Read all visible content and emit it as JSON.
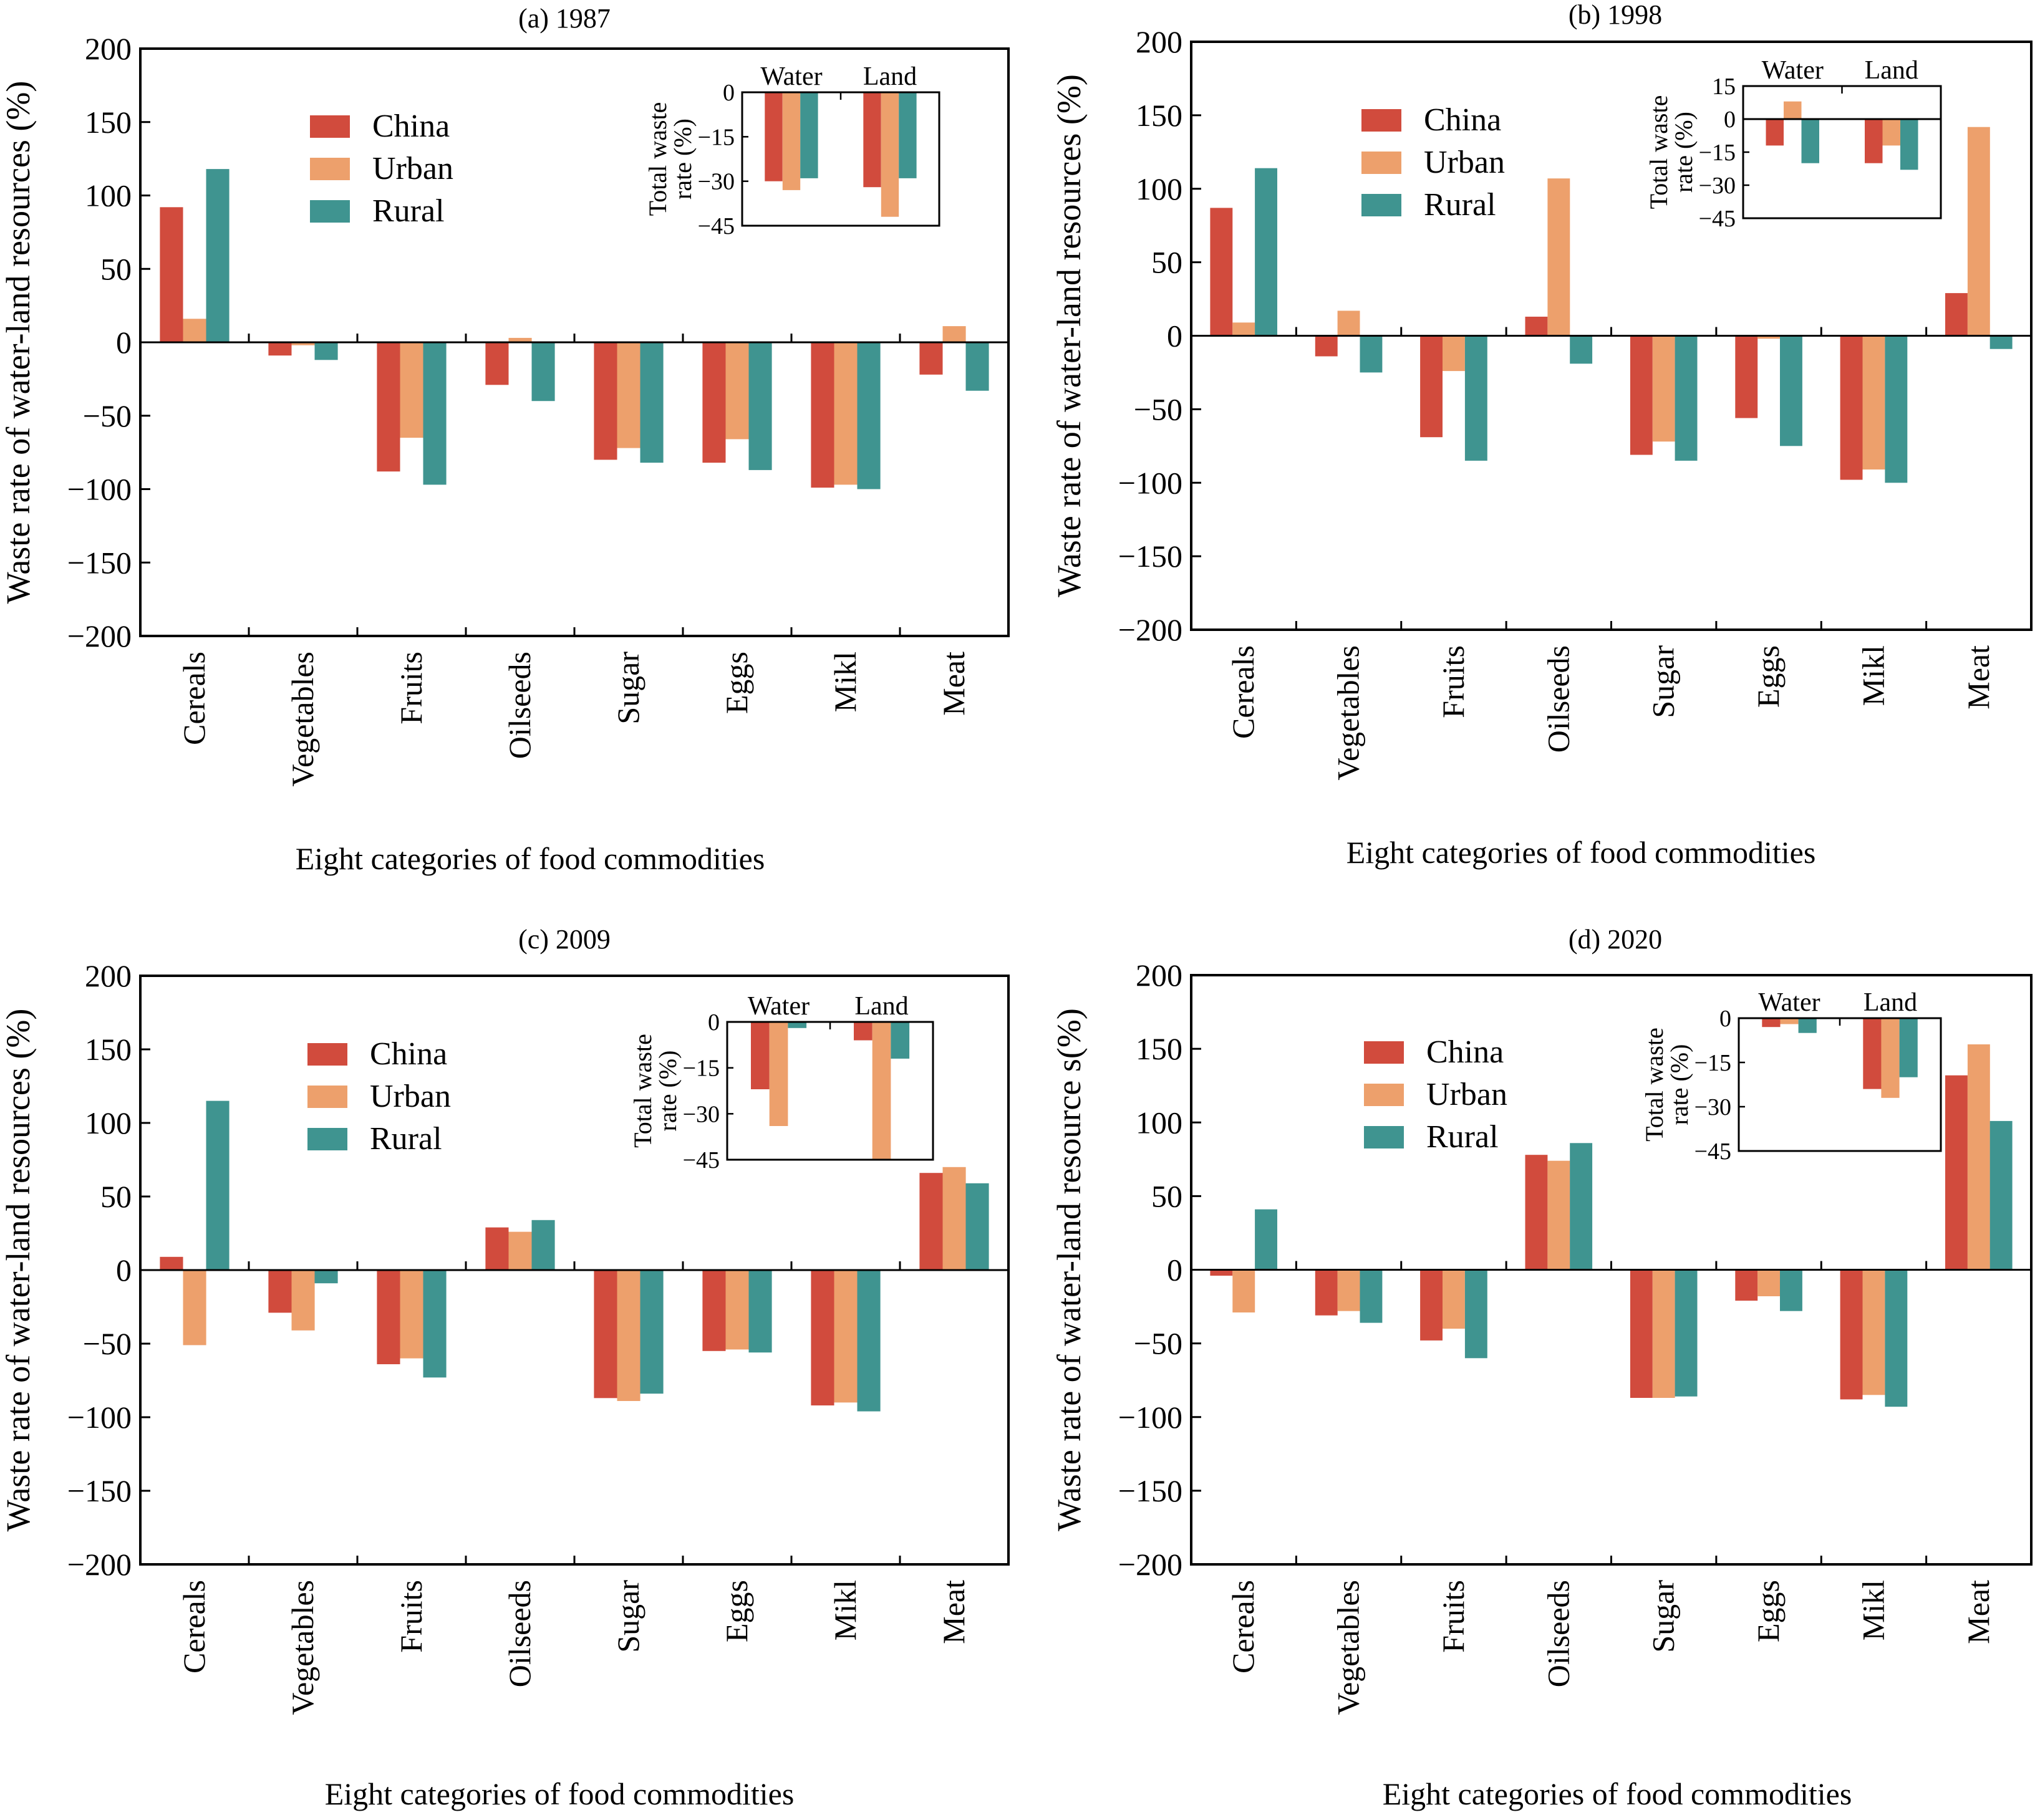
{
  "colors": {
    "China": "#d14b3d",
    "Urban": "#eda06c",
    "Rural": "#3f9490"
  },
  "chart_data": [
    {
      "type": "bar",
      "title": "(a) 1987",
      "xlabel": "Eight categories of food commodities",
      "ylabel": "Waste rate of water-land resources (%)",
      "ylim": [
        -200,
        200
      ],
      "yticks": [
        -200,
        -150,
        -100,
        -50,
        0,
        50,
        100,
        150,
        200
      ],
      "grid": false,
      "legend_position": "upper-center",
      "categories": [
        "Cereals",
        "Vegetables",
        "Fruits",
        "Oilseeds",
        "Sugar",
        "Eggs",
        "Mikl",
        "Meat"
      ],
      "series": [
        {
          "name": "China",
          "values": [
            92,
            -9,
            -88,
            -29,
            -80,
            -82,
            -99,
            -22
          ]
        },
        {
          "name": "Urban",
          "values": [
            16,
            -2,
            -65,
            3,
            -72,
            -66,
            -97,
            11
          ]
        },
        {
          "name": "Rural",
          "values": [
            118,
            -12,
            -97,
            -40,
            -82,
            -87,
            -100,
            -33
          ]
        }
      ],
      "inset": {
        "ylabel": "Total waste rate (%)",
        "categories": [
          "Water",
          "Land"
        ],
        "ylim": [
          -45,
          0
        ],
        "yticks": [
          0,
          -15,
          -30,
          -45
        ],
        "series": [
          {
            "name": "China",
            "values": [
              -30,
              -32
            ]
          },
          {
            "name": "Urban",
            "values": [
              -33,
              -42
            ]
          },
          {
            "name": "Rural",
            "values": [
              -29,
              -29
            ]
          }
        ]
      }
    },
    {
      "type": "bar",
      "title": "(b) 1998",
      "xlabel": "Eight categories of food commodities",
      "ylabel": "Waste rate of water-land resources (%)",
      "ylim": [
        -200,
        200
      ],
      "yticks": [
        -200,
        -150,
        -100,
        -50,
        0,
        50,
        100,
        150,
        200
      ],
      "grid": false,
      "legend_position": "upper-center",
      "categories": [
        "Cereals",
        "Vegetables",
        "Fruits",
        "Oilseeds",
        "Sugar",
        "Eggs",
        "Mikl",
        "Meat"
      ],
      "series": [
        {
          "name": "China",
          "values": [
            87,
            -14,
            -69,
            13,
            -81,
            -56,
            -98,
            29
          ]
        },
        {
          "name": "Urban",
          "values": [
            9,
            17,
            -24,
            107,
            -72,
            -2,
            -91,
            142
          ]
        },
        {
          "name": "Rural",
          "values": [
            114,
            -25,
            -85,
            -19,
            -85,
            -75,
            -100,
            -9
          ]
        }
      ],
      "inset": {
        "ylabel": "Total waste rate (%)",
        "categories": [
          "Water",
          "Land"
        ],
        "ylim": [
          -45,
          15
        ],
        "yticks": [
          15,
          0,
          -15,
          -30,
          -45
        ],
        "series": [
          {
            "name": "China",
            "values": [
              -12,
              -20
            ]
          },
          {
            "name": "Urban",
            "values": [
              8,
              -12
            ]
          },
          {
            "name": "Rural",
            "values": [
              -20,
              -23
            ]
          }
        ]
      }
    },
    {
      "type": "bar",
      "title": "(c) 2009",
      "xlabel": "Eight categories of food commodities",
      "ylabel": "Waste rate of water-land resources (%)",
      "ylim": [
        -200,
        200
      ],
      "yticks": [
        -200,
        -150,
        -100,
        -50,
        0,
        50,
        100,
        150,
        200
      ],
      "grid": false,
      "legend_position": "upper-center",
      "categories": [
        "Cereals",
        "Vegetables",
        "Fruits",
        "Oilseeds",
        "Sugar",
        "Eggs",
        "Mikl",
        "Meat"
      ],
      "series": [
        {
          "name": "China",
          "values": [
            9,
            -29,
            -64,
            29,
            -87,
            -55,
            -92,
            66
          ]
        },
        {
          "name": "Urban",
          "values": [
            -51,
            -41,
            -60,
            26,
            -89,
            -54,
            -90,
            70
          ]
        },
        {
          "name": "Rural",
          "values": [
            115,
            -9,
            -73,
            34,
            -84,
            -56,
            -96,
            59
          ]
        }
      ],
      "inset": {
        "ylabel": "Total waste rate (%)",
        "categories": [
          "Water",
          "Land"
        ],
        "ylim": [
          -45,
          0
        ],
        "yticks": [
          0,
          -15,
          -30,
          -45
        ],
        "series": [
          {
            "name": "China",
            "values": [
              -22,
              -6
            ]
          },
          {
            "name": "Urban",
            "values": [
              -34,
              -45
            ]
          },
          {
            "name": "Rural",
            "values": [
              -2,
              -12
            ]
          }
        ]
      }
    },
    {
      "type": "bar",
      "title": "(d) 2020",
      "xlabel": "Eight categories of food commodities",
      "ylabel": "Waste rate of water-land resource s(%)",
      "ylim": [
        -200,
        200
      ],
      "yticks": [
        -200,
        -150,
        -100,
        -50,
        0,
        50,
        100,
        150,
        200
      ],
      "grid": false,
      "legend_position": "upper-center",
      "categories": [
        "Cereals",
        "Vegetables",
        "Fruits",
        "Oilseeds",
        "Sugar",
        "Eggs",
        "Mikl",
        "Meat"
      ],
      "series": [
        {
          "name": "China",
          "values": [
            -4,
            -31,
            -48,
            78,
            -87,
            -21,
            -88,
            132
          ]
        },
        {
          "name": "Urban",
          "values": [
            -29,
            -28,
            -40,
            74,
            -87,
            -18,
            -85,
            153
          ]
        },
        {
          "name": "Rural",
          "values": [
            41,
            -36,
            -60,
            86,
            -86,
            -28,
            -93,
            101
          ]
        }
      ],
      "inset": {
        "ylabel": "Total waste rate (%)",
        "categories": [
          "Water",
          "Land"
        ],
        "ylim": [
          -45,
          0
        ],
        "yticks": [
          0,
          -15,
          -30,
          -45
        ],
        "series": [
          {
            "name": "China",
            "values": [
              -3,
              -24
            ]
          },
          {
            "name": "Urban",
            "values": [
              -2,
              -27
            ]
          },
          {
            "name": "Rural",
            "values": [
              -5,
              -20
            ]
          }
        ]
      }
    }
  ]
}
